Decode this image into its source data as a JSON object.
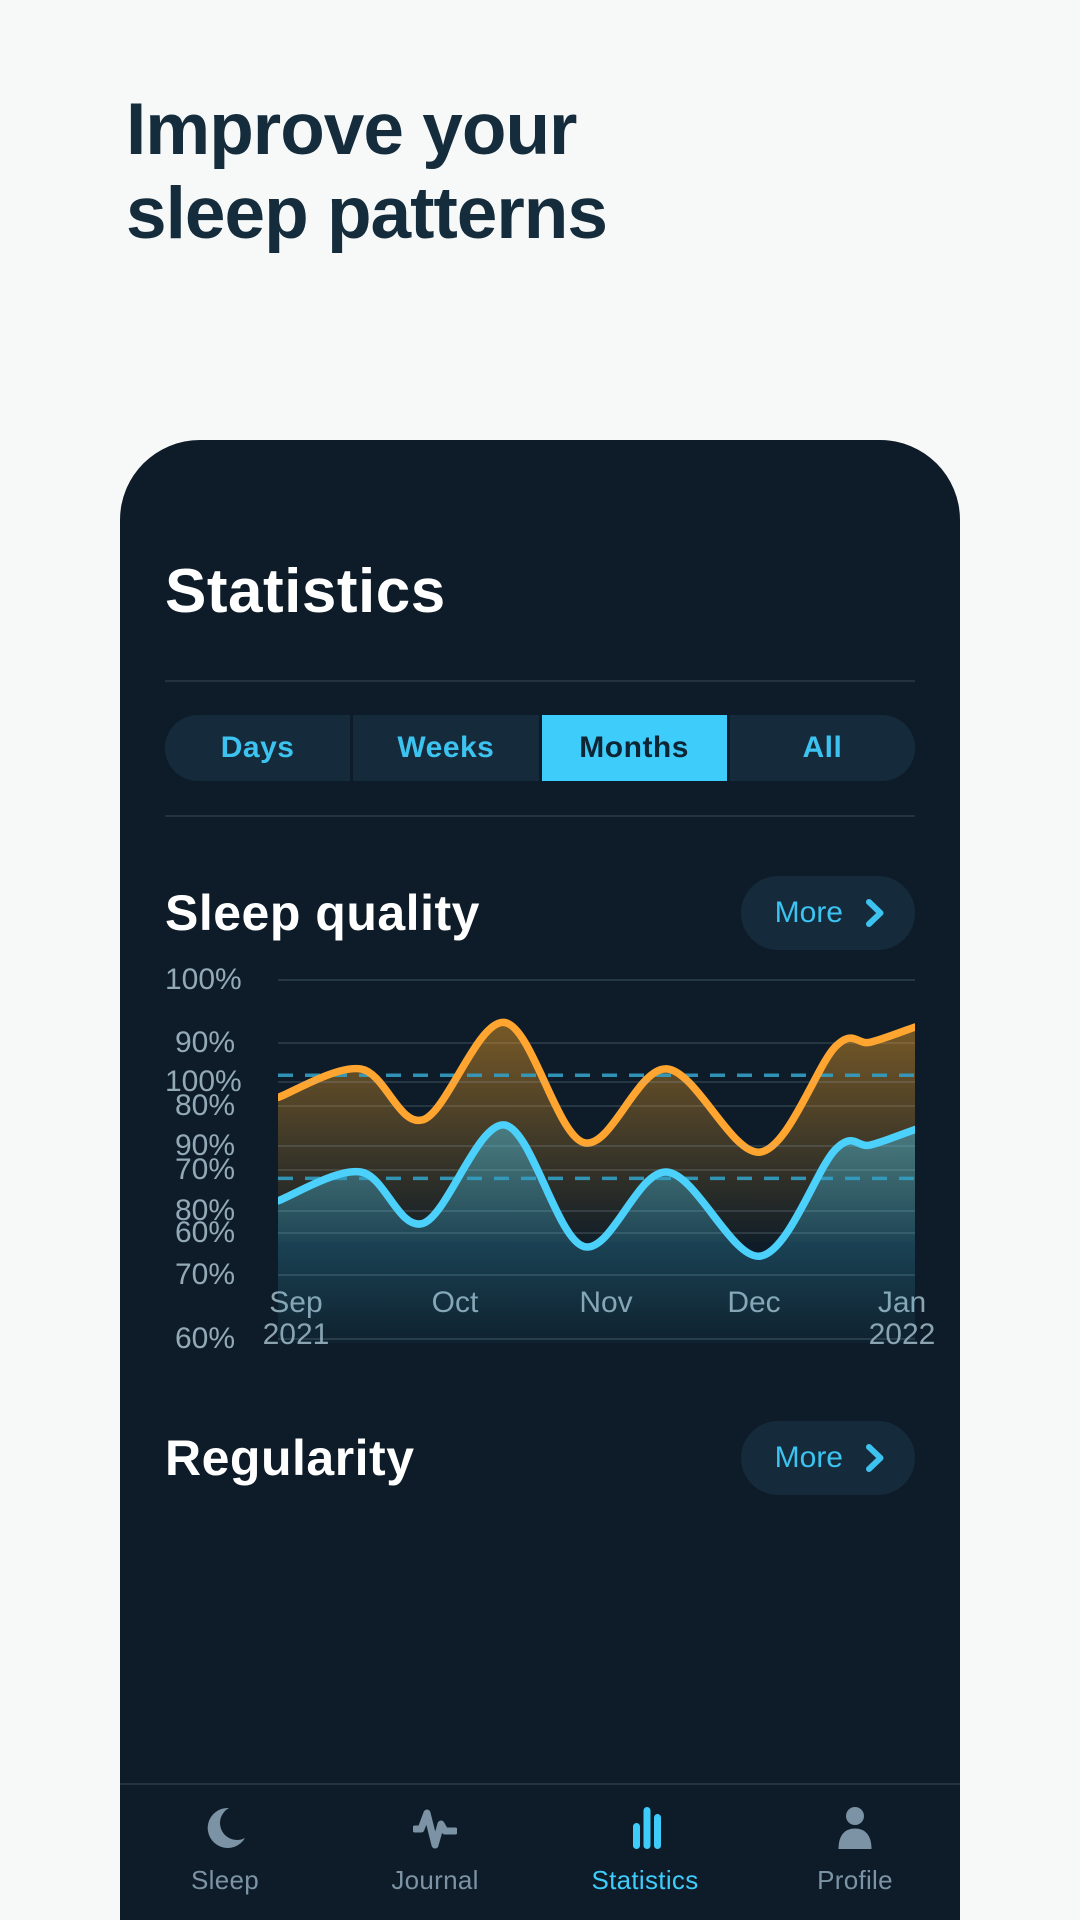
{
  "page": {
    "background": "#f7f8f8",
    "heading_line1": "Improve your",
    "heading_line2": "sleep patterns",
    "heading_color": "#142c3b"
  },
  "app": {
    "title": "Statistics",
    "card_bg": "#0d1c28",
    "accent_cyan": "#3ecdfb",
    "segments": [
      {
        "label": "Days",
        "selected": false
      },
      {
        "label": "Weeks",
        "selected": false
      },
      {
        "label": "Months",
        "selected": true
      },
      {
        "label": "All",
        "selected": false
      }
    ],
    "sections": [
      {
        "title": "Sleep quality",
        "more_label": "More"
      },
      {
        "title": "Regularity",
        "more_label": "More"
      }
    ],
    "tabbar": {
      "items": [
        {
          "label": "Sleep",
          "icon": "moon-icon",
          "active": false
        },
        {
          "label": "Journal",
          "icon": "waveform-icon",
          "active": false
        },
        {
          "label": "Statistics",
          "icon": "bars-icon",
          "active": true
        },
        {
          "label": "Profile",
          "icon": "person-icon",
          "active": false
        }
      ]
    }
  },
  "chart_data": [
    {
      "type": "area",
      "title": "Sleep quality",
      "ylim": [
        60,
        100
      ],
      "y_ticks": [
        "100%",
        "90%",
        "80%",
        "70%",
        "60%"
      ],
      "x_labels": [
        "Sep",
        "Oct",
        "Nov",
        "Dec",
        "Jan"
      ],
      "x_sublabels": [
        "2021",
        "",
        "",
        "",
        "2022"
      ],
      "grid": true,
      "legend": "none",
      "average_dashed_line": 85,
      "avg_color": "#339fc4",
      "line_color": "#ffa530",
      "fill_from": "rgba(250,164,38,0.45)",
      "fill_to": "rgba(250,164,38,0.02)",
      "points": [
        [
          0,
          81.5
        ],
        [
          0.13,
          86
        ],
        [
          0.228,
          78
        ],
        [
          0.356,
          93.3
        ],
        [
          0.48,
          74.4
        ],
        [
          0.61,
          86
        ],
        [
          0.757,
          72.9
        ],
        [
          0.875,
          89.5
        ],
        [
          0.93,
          90.2
        ],
        [
          1,
          92.6
        ]
      ]
    },
    {
      "type": "area",
      "title": "Regularity",
      "ylim": [
        60,
        100
      ],
      "y_ticks": [
        "100%",
        "90%",
        "80%",
        "70%",
        "60%"
      ],
      "grid": true,
      "legend": "none",
      "average_dashed_line": 85,
      "avg_color": "#339fc4",
      "line_color": "#4bd1fb",
      "fill_from": "rgba(75,209,251,0.42)",
      "fill_to": "rgba(75,209,251,0.03)",
      "points": [
        [
          0,
          81.5
        ],
        [
          0.13,
          86
        ],
        [
          0.228,
          78
        ],
        [
          0.356,
          93.3
        ],
        [
          0.48,
          74.4
        ],
        [
          0.61,
          86
        ],
        [
          0.757,
          72.9
        ],
        [
          0.875,
          89.5
        ],
        [
          0.93,
          90.2
        ],
        [
          1,
          92.6
        ]
      ]
    }
  ]
}
